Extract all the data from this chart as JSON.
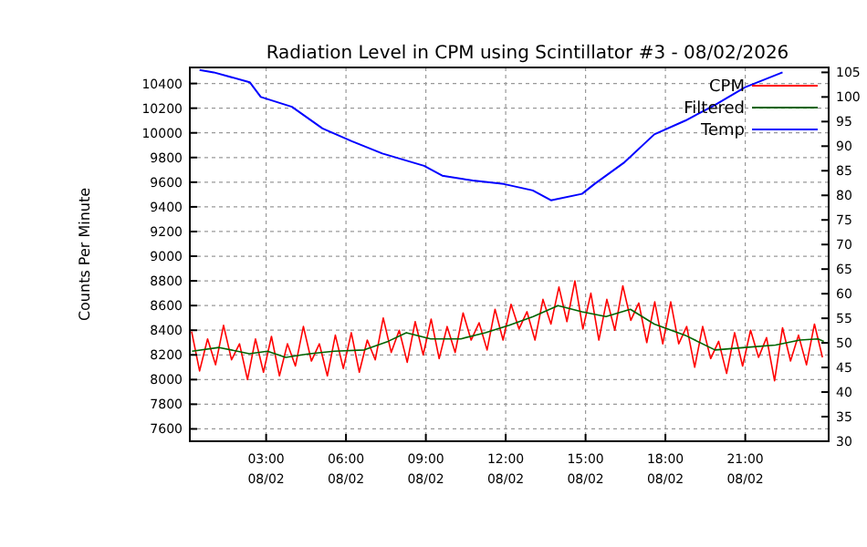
{
  "chart_data": {
    "type": "line",
    "title": "Radiation Level in CPM using Scintillator #3 - 08/02/2026",
    "ylabel": "Counts Per Minute",
    "xlim": [
      "2026-08-02T00:08",
      "2026-08-03T00:08"
    ],
    "xticks": [
      {
        "value": "2026-08-02T03:00",
        "label": "03:00\n08/02"
      },
      {
        "value": "2026-08-02T06:00",
        "label": "06:00\n08/02"
      },
      {
        "value": "2026-08-02T09:00",
        "label": "09:00\n08/02"
      },
      {
        "value": "2026-08-02T12:00",
        "label": "12:00\n08/02"
      },
      {
        "value": "2026-08-02T15:00",
        "label": "15:00\n08/02"
      },
      {
        "value": "2026-08-02T18:00",
        "label": "18:00\n08/02"
      },
      {
        "value": "2026-08-02T21:00",
        "label": "21:00\n08/02"
      }
    ],
    "ylim": [
      7500,
      10530
    ],
    "yticks": [
      7600,
      7800,
      8000,
      8200,
      8400,
      8600,
      8800,
      9000,
      9200,
      9400,
      9600,
      9800,
      10000,
      10200,
      10400
    ],
    "y2lim": [
      30,
      106
    ],
    "y2ticks": [
      30,
      35,
      40,
      45,
      50,
      55,
      60,
      65,
      70,
      75,
      80,
      85,
      90,
      95,
      100,
      105
    ],
    "grid": true,
    "legend": "top right",
    "line_style": "solid",
    "series": [
      {
        "name": "CPM",
        "color": "#ff0000",
        "x": [
          "2026-08-02T00:12",
          "2026-08-02T00:30",
          "2026-08-02T00:48",
          "2026-08-02T01:06",
          "2026-08-02T01:24",
          "2026-08-02T01:42",
          "2026-08-02T02:00",
          "2026-08-02T02:18",
          "2026-08-02T02:36",
          "2026-08-02T02:54",
          "2026-08-02T03:12",
          "2026-08-02T03:30",
          "2026-08-02T03:48",
          "2026-08-02T04:06",
          "2026-08-02T04:24",
          "2026-08-02T04:42",
          "2026-08-02T05:00",
          "2026-08-02T05:18",
          "2026-08-02T05:36",
          "2026-08-02T05:54",
          "2026-08-02T06:12",
          "2026-08-02T06:30",
          "2026-08-02T06:48",
          "2026-08-02T07:06",
          "2026-08-02T07:24",
          "2026-08-02T07:42",
          "2026-08-02T08:00",
          "2026-08-02T08:18",
          "2026-08-02T08:36",
          "2026-08-02T08:54",
          "2026-08-02T09:12",
          "2026-08-02T09:30",
          "2026-08-02T09:48",
          "2026-08-02T10:06",
          "2026-08-02T10:24",
          "2026-08-02T10:42",
          "2026-08-02T11:00",
          "2026-08-02T11:18",
          "2026-08-02T11:36",
          "2026-08-02T11:54",
          "2026-08-02T12:12",
          "2026-08-02T12:30",
          "2026-08-02T12:48",
          "2026-08-02T13:06",
          "2026-08-02T13:24",
          "2026-08-02T13:42",
          "2026-08-02T14:00",
          "2026-08-02T14:18",
          "2026-08-02T14:36",
          "2026-08-02T14:54",
          "2026-08-02T15:12",
          "2026-08-02T15:30",
          "2026-08-02T15:48",
          "2026-08-02T16:06",
          "2026-08-02T16:24",
          "2026-08-02T16:42",
          "2026-08-02T17:00",
          "2026-08-02T17:18",
          "2026-08-02T17:36",
          "2026-08-02T17:54",
          "2026-08-02T18:12",
          "2026-08-02T18:30",
          "2026-08-02T18:48",
          "2026-08-02T19:06",
          "2026-08-02T19:24",
          "2026-08-02T19:42",
          "2026-08-02T20:00",
          "2026-08-02T20:18",
          "2026-08-02T20:36",
          "2026-08-02T20:54",
          "2026-08-02T21:12",
          "2026-08-02T21:30",
          "2026-08-02T21:48",
          "2026-08-02T22:06",
          "2026-08-02T22:24",
          "2026-08-02T22:42",
          "2026-08-02T23:00",
          "2026-08-02T23:18",
          "2026-08-02T23:36",
          "2026-08-02T23:54"
        ],
        "values": [
          8390,
          8070,
          8330,
          8120,
          8440,
          8160,
          8290,
          8000,
          8330,
          8060,
          8350,
          8030,
          8290,
          8110,
          8430,
          8150,
          8290,
          8030,
          8360,
          8090,
          8380,
          8060,
          8320,
          8160,
          8500,
          8220,
          8400,
          8140,
          8470,
          8200,
          8490,
          8170,
          8430,
          8220,
          8540,
          8320,
          8460,
          8240,
          8570,
          8320,
          8610,
          8410,
          8550,
          8320,
          8650,
          8450,
          8750,
          8470,
          8800,
          8410,
          8700,
          8320,
          8650,
          8400,
          8760,
          8480,
          8620,
          8300,
          8630,
          8290,
          8630,
          8290,
          8430,
          8100,
          8430,
          8170,
          8310,
          8050,
          8380,
          8110,
          8400,
          8180,
          8340,
          7990,
          8420,
          8150,
          8360,
          8120,
          8450,
          8180
        ]
      },
      {
        "name": "Filtered",
        "color": "#006400",
        "x": [
          "2026-08-02T00:13",
          "2026-08-02T01:14",
          "2026-08-02T02:22",
          "2026-08-02T03:03",
          "2026-08-02T03:44",
          "2026-08-02T04:38",
          "2026-08-02T05:33",
          "2026-08-02T06:41",
          "2026-08-02T07:35",
          "2026-08-02T08:16",
          "2026-08-02T09:11",
          "2026-08-02T10:19",
          "2026-08-02T11:14",
          "2026-08-02T12:08",
          "2026-08-02T13:02",
          "2026-08-02T13:58",
          "2026-08-02T14:52",
          "2026-08-02T15:46",
          "2026-08-02T16:41",
          "2026-08-02T17:35",
          "2026-08-02T18:44",
          "2026-08-02T19:52",
          "2026-08-02T21:00",
          "2026-08-02T22:08",
          "2026-08-02T23:03",
          "2026-08-02T23:44",
          "2026-08-02T23:57"
        ],
        "values": [
          8230,
          8260,
          8210,
          8230,
          8180,
          8210,
          8230,
          8240,
          8310,
          8380,
          8330,
          8330,
          8380,
          8440,
          8510,
          8600,
          8550,
          8510,
          8570,
          8450,
          8360,
          8240,
          8260,
          8280,
          8320,
          8330,
          8310
        ]
      },
      {
        "name": "Temp",
        "color": "#0000ff",
        "axis": "y2",
        "x": [
          "2026-08-02T00:30",
          "2026-08-02T01:02",
          "2026-08-02T02:23",
          "2026-08-02T02:48",
          "2026-08-02T03:58",
          "2026-08-02T05:07",
          "2026-08-02T06:13",
          "2026-08-02T07:22",
          "2026-08-02T08:56",
          "2026-08-02T09:37",
          "2026-08-02T10:46",
          "2026-08-02T11:56",
          "2026-08-02T13:01",
          "2026-08-02T13:42",
          "2026-08-02T14:52",
          "2026-08-02T15:20",
          "2026-08-02T16:26",
          "2026-08-02T17:35",
          "2026-08-02T18:45",
          "2026-08-02T19:50",
          "2026-08-02T21:00",
          "2026-08-02T22:24"
        ],
        "values": [
          105.5,
          105,
          103,
          100,
          98,
          93.6,
          91,
          88.5,
          86,
          84,
          83,
          82.3,
          81,
          79,
          80.3,
          82.3,
          86.6,
          92.4,
          95.2,
          98.3,
          102,
          105
        ]
      }
    ]
  }
}
